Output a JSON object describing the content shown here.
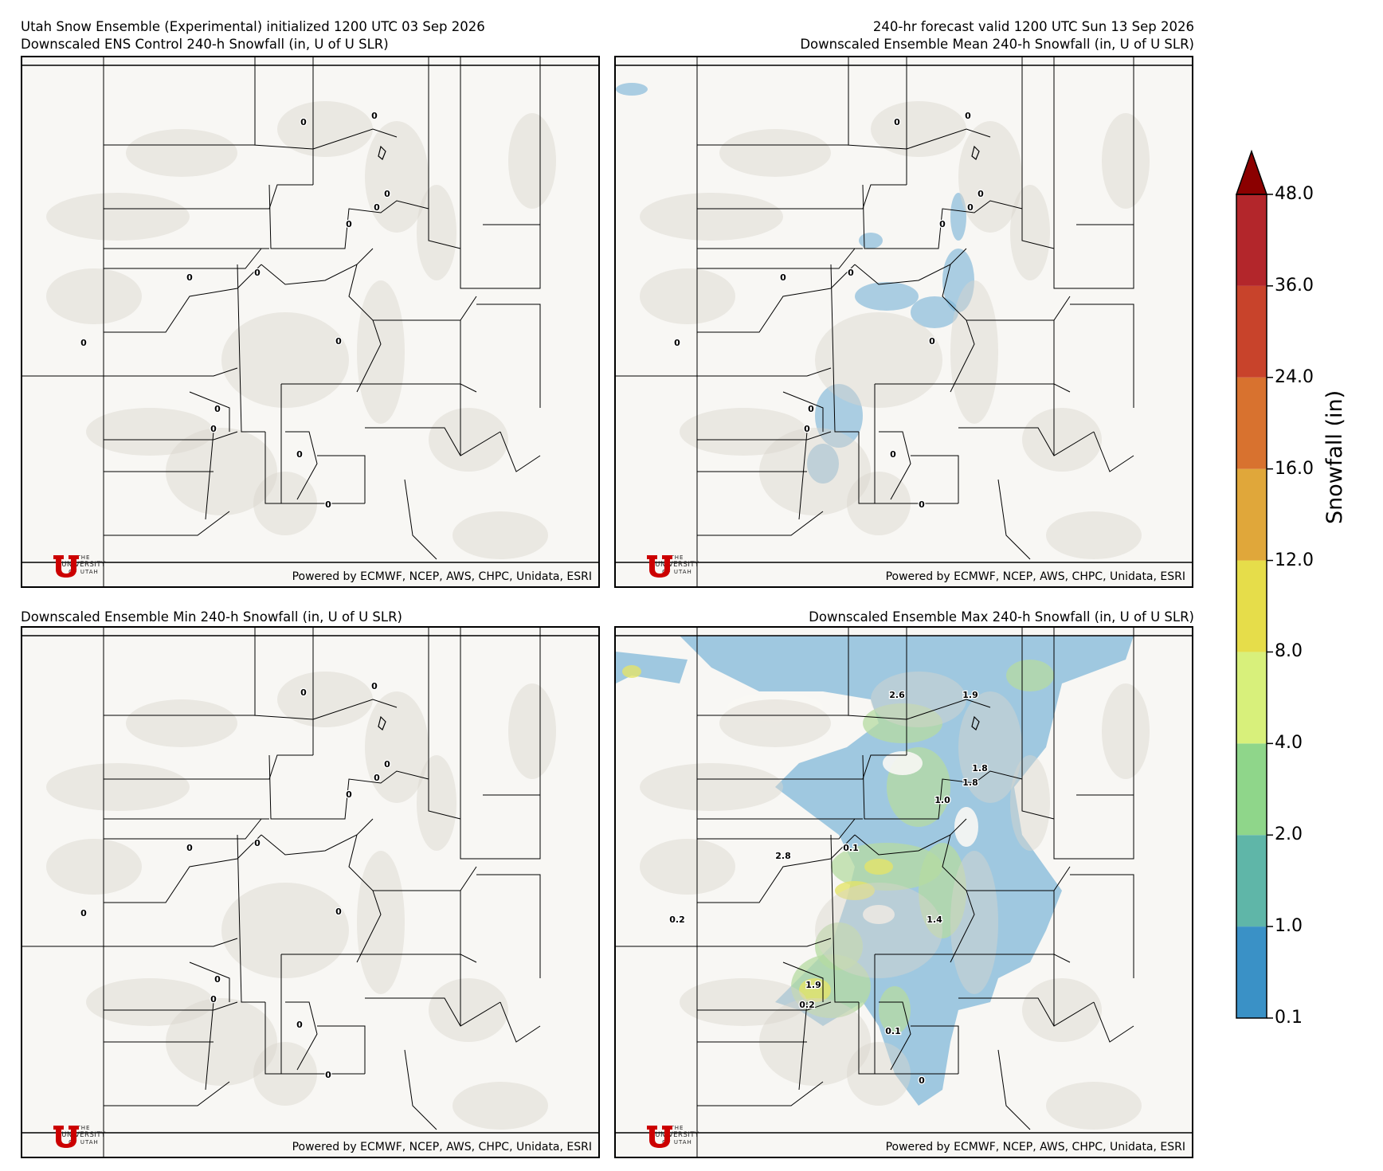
{
  "header": {
    "left_line1": "Utah Snow Ensemble (Experimental) initialized 1200 UTC 03 Sep 2026",
    "left_line2": "Downscaled ENS Control 240-h Snowfall (in, U of U SLR)",
    "right_line1": "240-hr forecast valid 1200 UTC Sun 13 Sep 2026",
    "right_line2": "Downscaled Ensemble Mean 240-h Snowfall (in, U of U SLR)",
    "bottom_left_title": "Downscaled Ensemble Min 240-h Snowfall (in, U of U SLR)",
    "bottom_right_title": "Downscaled Ensemble Max 240-h Snowfall (in, U of U SLR)"
  },
  "credits": "Powered by ECMWF, NCEP, AWS, CHPC, Unidata, ESRI",
  "logo": {
    "line1": "THE",
    "line2": "UNIVERSITY",
    "line3": "OF UTAH"
  },
  "colorbar": {
    "title": "Snowfall (in)",
    "ticks": [
      "0.1",
      "1.0",
      "2.0",
      "4.0",
      "8.0",
      "12.0",
      "16.0",
      "24.0",
      "36.0",
      "48.0"
    ],
    "colors": [
      "#3a91c6",
      "#5fb6a8",
      "#8fd68a",
      "#d8f07b",
      "#e6dd4a",
      "#e0a73a",
      "#d8722f",
      "#c8432b",
      "#b3262b"
    ],
    "extend_color": "#8b0000"
  },
  "panels": {
    "control": {
      "labels": [
        "0",
        "0",
        "0",
        "0",
        "0",
        "0",
        "0",
        "0",
        "0",
        "0",
        "0",
        "0",
        "0"
      ]
    },
    "mean": {
      "labels": [
        "0",
        "0",
        "0",
        "0",
        "0",
        "0",
        "0",
        "0",
        "0",
        "0",
        "0",
        "0",
        "0"
      ]
    },
    "min": {
      "labels": [
        "0",
        "0",
        "0",
        "0",
        "0",
        "0",
        "0",
        "0",
        "0",
        "0",
        "0",
        "0",
        "0"
      ]
    },
    "max": {
      "labels": [
        "2.6",
        "1.9",
        "1.8",
        "1.8",
        "1.0",
        "0.1",
        "2.8",
        "0.2",
        "1.4",
        "1.9",
        "0.2",
        "0.1",
        "0"
      ]
    }
  }
}
